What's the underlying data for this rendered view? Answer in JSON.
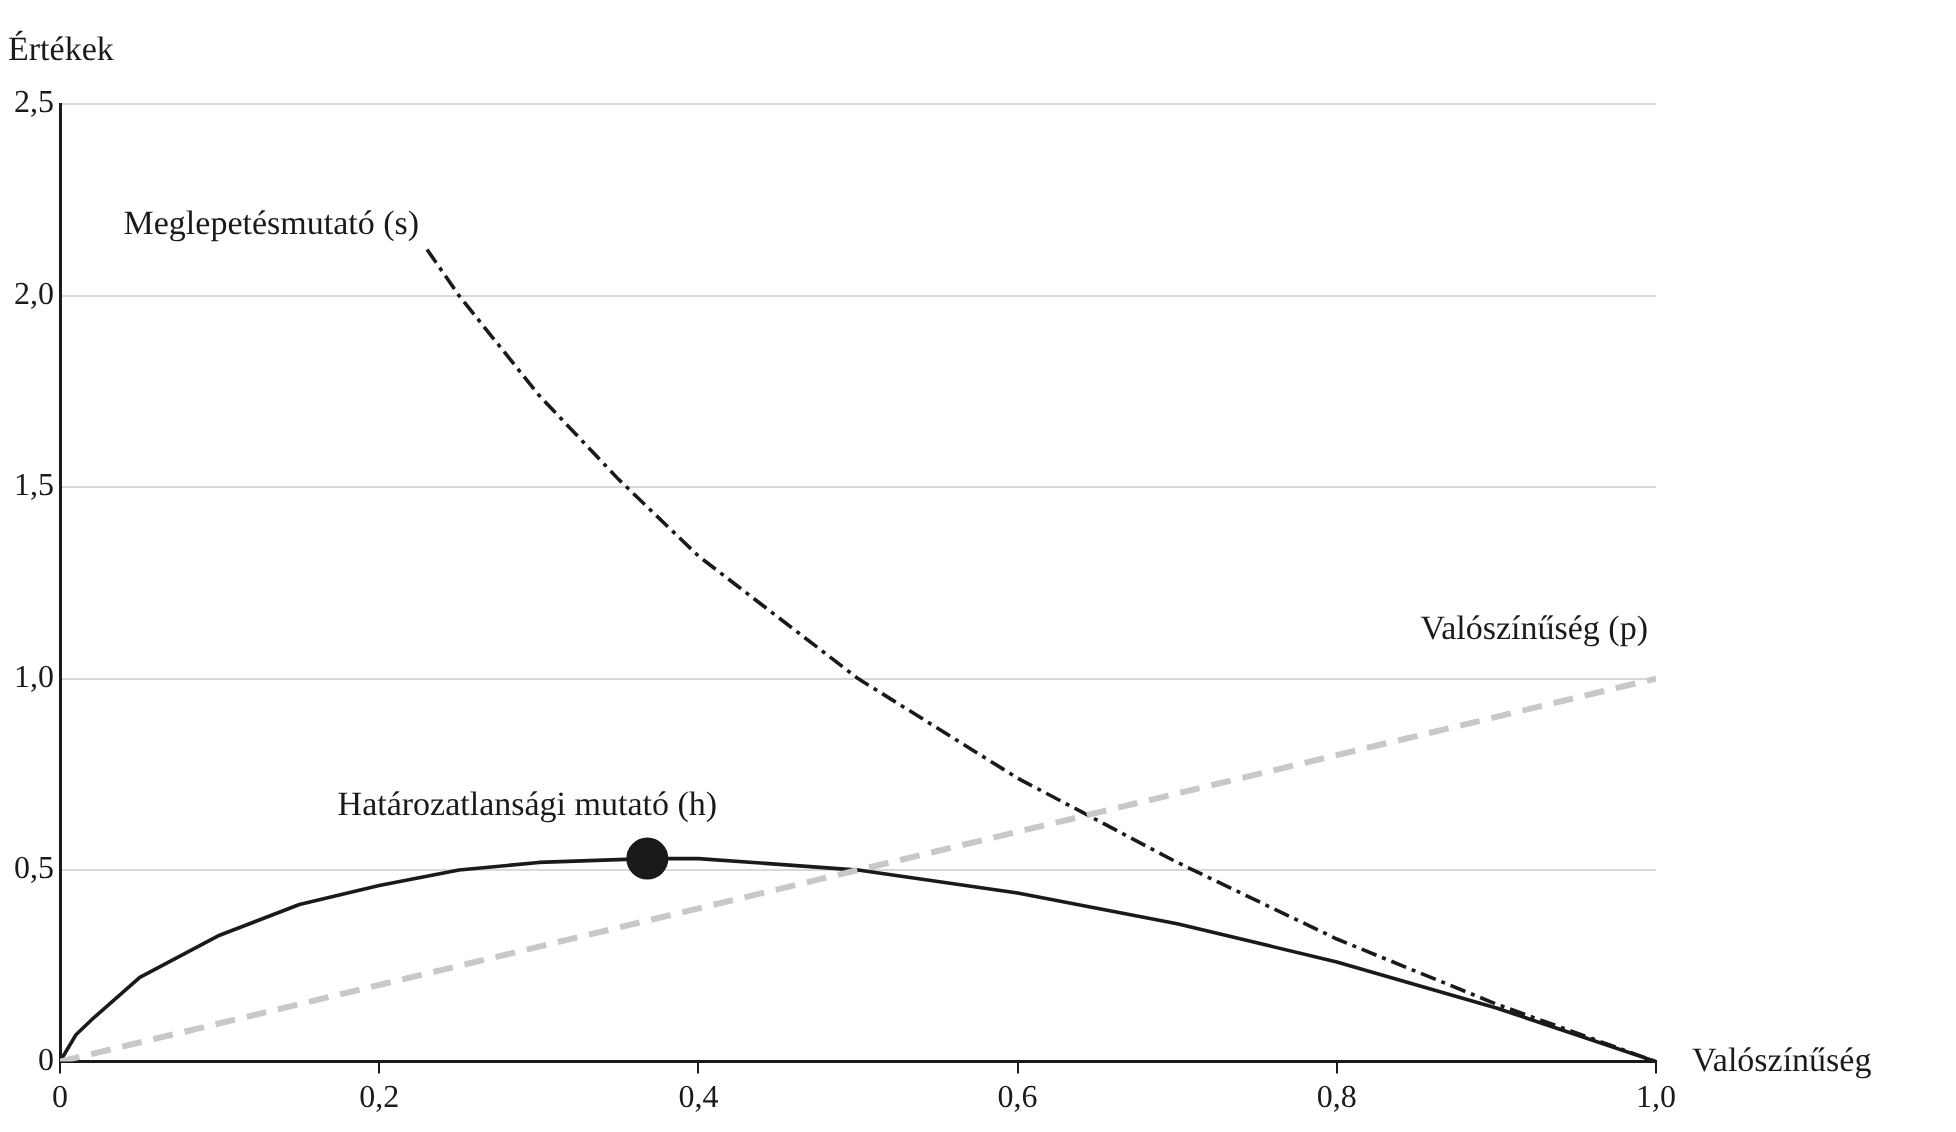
{
  "chart_data": {
    "type": "line",
    "xlabel": "Valószínűség",
    "ylabel": "Értékek",
    "xlim": [
      0,
      1
    ],
    "ylim": [
      0,
      2.5
    ],
    "xticks": [
      0,
      {
        "value": 0.2,
        "label": "0,2"
      },
      {
        "value": 0.4,
        "label": "0,4"
      },
      {
        "value": 0.6,
        "label": "0,6"
      },
      {
        "value": 0.8,
        "label": "0,8"
      },
      {
        "value": 1,
        "label": "1,0"
      }
    ],
    "yticks": [
      0,
      {
        "value": 0.5,
        "label": "0,5"
      },
      {
        "value": 1,
        "label": "1,0"
      },
      {
        "value": 1.5,
        "label": "1,5"
      },
      {
        "value": 2,
        "label": "2,0"
      },
      {
        "value": 2.5,
        "label": "2,5"
      }
    ],
    "grid": "y",
    "legend": false,
    "marker": "none",
    "series": [
      {
        "name": "Valószínűség (p)",
        "color": "#c8c8c8",
        "line_style": "dashed",
        "x": [
          0,
          1
        ],
        "values": [
          0,
          1
        ]
      },
      {
        "name": "Meglepetésmutató (s)",
        "color": "#1a1a1a",
        "line_style": "dashdot",
        "x": [
          0.23,
          0.25,
          0.3,
          0.35,
          0.4,
          0.5,
          0.6,
          0.7,
          0.8,
          0.9,
          1.0
        ],
        "values": [
          2.12,
          2.0,
          1.74,
          1.52,
          1.32,
          1.0,
          0.74,
          0.52,
          0.32,
          0.15,
          0
        ]
      },
      {
        "name": "Határozatlansági mutató (h)",
        "color": "#1a1a1a",
        "line_style": "solid",
        "x": [
          0,
          0.01,
          0.02,
          0.05,
          0.1,
          0.15,
          0.2,
          0.25,
          0.3,
          0.368,
          0.4,
          0.5,
          0.6,
          0.7,
          0.8,
          0.9,
          0.95,
          1.0
        ],
        "values": [
          0,
          0.07,
          0.11,
          0.22,
          0.33,
          0.41,
          0.46,
          0.5,
          0.52,
          0.53,
          0.53,
          0.5,
          0.44,
          0.36,
          0.26,
          0.14,
          0.07,
          0
        ]
      },
      {
        "type": "scatter",
        "marker": "circle",
        "color": "#1a1a1a",
        "x": [
          0.368
        ],
        "values": [
          0.53
        ]
      }
    ]
  }
}
